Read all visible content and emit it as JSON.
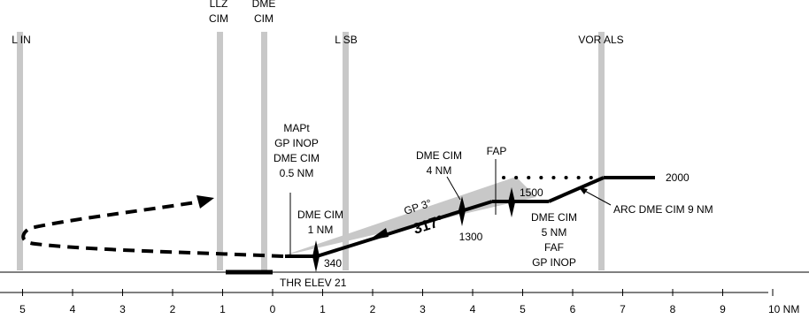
{
  "colors": {
    "beacon": "#c8c8c8",
    "gp_sector": "#c8c8c8",
    "ink": "#000000"
  },
  "beacons": [
    {
      "id": "l-in",
      "label_lines": [
        "L IN"
      ],
      "distance_nm": 5.1
    },
    {
      "id": "llz-cim",
      "label_lines": [
        "LLZ",
        "CIM"
      ],
      "distance_nm": 1.0
    },
    {
      "id": "dme-cim",
      "label_lines": [
        "DME",
        "CIM"
      ],
      "distance_nm": 0.15
    },
    {
      "id": "l-sb",
      "label_lines": [
        "L SB"
      ],
      "distance_nm": -1.5
    },
    {
      "id": "vor-als",
      "label_lines": [
        "VOR ALS"
      ],
      "distance_nm": -6.65
    }
  ],
  "axis": {
    "ticks": [
      "5",
      "4",
      "3",
      "2",
      "1",
      "0",
      "1",
      "2",
      "3",
      "4",
      "5",
      "6",
      "7",
      "8",
      "9"
    ],
    "unit_label": "10 NM",
    "tick_values": [
      5,
      4,
      3,
      2,
      1,
      0,
      -1,
      -2,
      -3,
      -4,
      -5,
      -6,
      -7,
      -8,
      -9,
      -10
    ]
  },
  "annotations": {
    "mapt": [
      "MAPt",
      "GP INOP",
      "DME CIM",
      "0.5 NM"
    ],
    "dme_1nm": [
      "DME CIM",
      "1 NM"
    ],
    "dme_4nm": [
      "DME CIM",
      "4 NM"
    ],
    "fap": "FAP",
    "fix_5nm": [
      "DME CIM",
      "5 NM",
      "FAF",
      "GP INOP"
    ],
    "arc": "ARC DME CIM 9 NM",
    "glide_path": "GP 3°",
    "course": "317°",
    "threshold": "THR ELEV 21"
  },
  "altitudes": {
    "a2000": "2000",
    "a1500": "1500",
    "a1300": "1300",
    "a340": "340"
  },
  "profile": {
    "initial_alt_ft": 2000,
    "fap_alt_ft": 1500,
    "dme4_alt_ft": 1300,
    "dme1_alt_ft": 340,
    "threshold_elev_ft": 21
  }
}
